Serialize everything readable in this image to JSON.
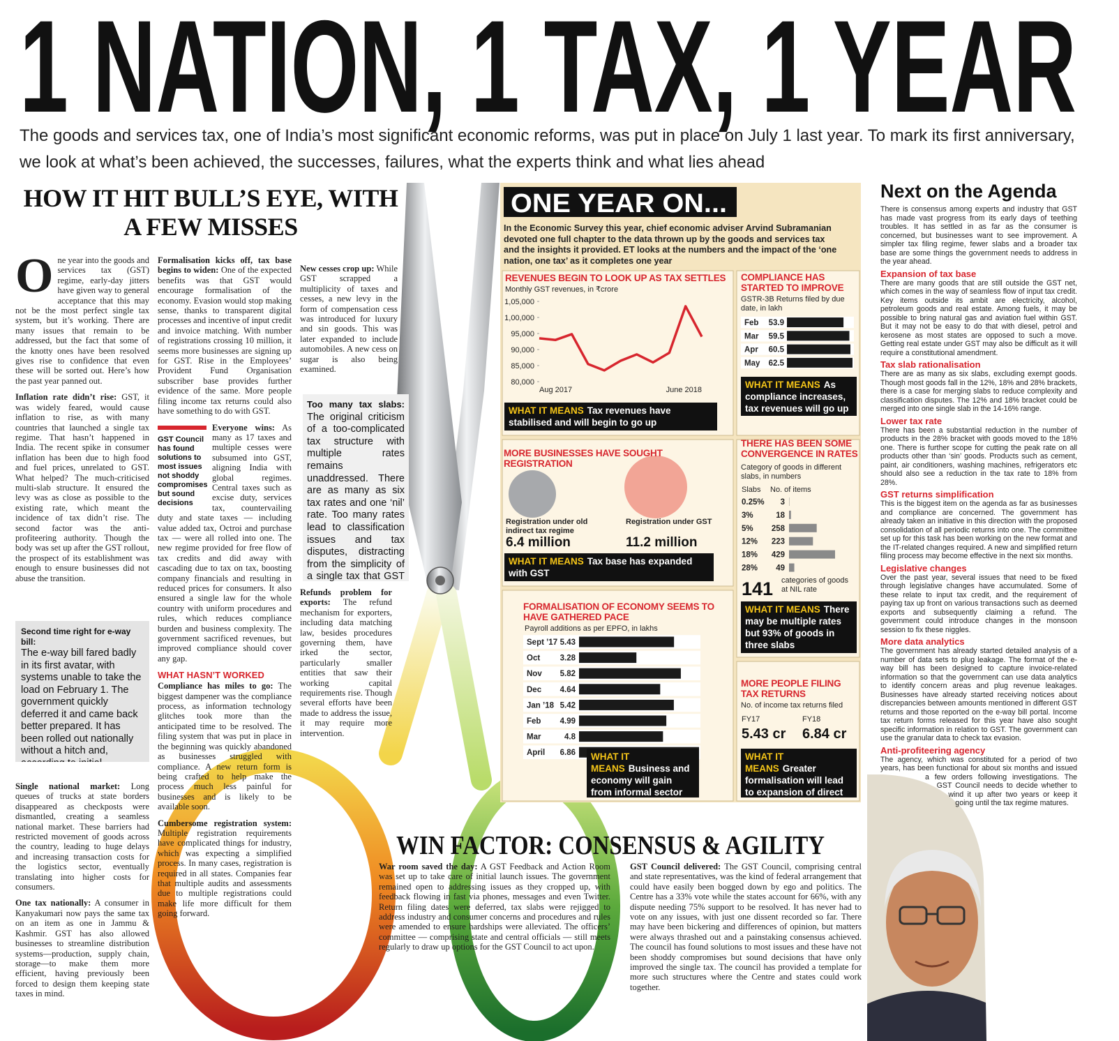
{
  "headline": "1 NATION, 1 TAX, 1 YEAR",
  "deck": "The goods and services tax, one of India’s most significant economic reforms, was put in place on July 1 last year. To mark its first anniversary, we look at what’s been achieved, the successes, failures, what the experts think and what lies ahead",
  "left_article": {
    "title": "HOW IT HIT BULL’S EYE, WITH A FEW MISSES",
    "dropcap": "O",
    "intro": "ne year into the goods and services tax (GST) regime, early-day jitters have given way to general acceptance that this may not be the most perfect single tax system, but it’s working. There are many issues that remain to be addressed, but the fact that some of the knotty ones have been resolved gives rise to confidence that even these will be sorted out. Here’s how the past year panned out.",
    "pullquote": "GST Council has found solutions to most issues not shoddy compromises but sound decisions",
    "subhead": "WHAT HASN’T WORKED",
    "sections": [
      {
        "lead": "Inflation rate didn’t rise:",
        "text": "GST, it was widely feared, would cause inflation to rise, as with many countries that launched a single tax regime. That hasn’t happened in India. The recent spike in consumer inflation has been due to high food and fuel prices, unrelated to GST. What helped? The much-criticised multi-slab structure. It ensured the levy was as close as possible to the existing rate, which meant the incidence of tax didn’t rise. The second factor was the anti-profiteering authority. Though the body was set up after the GST rollout, the prospect of its establishment was enough to ensure businesses did not abuse the transition."
      },
      {
        "lead": "Second time right for e-way bill:",
        "text": "The e-way bill fared badly in its first avatar, with systems unable to take the load on February 1. The government quickly deferred it and came back better prepared. It has been rolled out nationally without a hitch and, according to initial assessments, has helped curb evasion."
      },
      {
        "lead": "Single national market:",
        "text": "Long queues of trucks at state borders disappeared as checkposts were dismantled, creating a seamless national market. These barriers had restricted movement of goods across the country, leading to huge delays and increasing transaction costs for the logistics sector, eventually translating into higher costs for consumers."
      },
      {
        "lead": "One tax nationally:",
        "text": "A consumer in Kanyakumari now pays the same tax on an item as one in Jammu & Kashmir. GST has also allowed businesses to streamline distribution systems—production, supply chain, storage—to make them more efficient, having previously been forced to design them keeping state taxes in mind."
      },
      {
        "lead": "Formalisation kicks off, tax base begins to widen:",
        "text": "One of the expected benefits was that GST would encourage formalisation of the economy. Evasion would stop making sense, thanks to transparent digital processes and incentive of input credit and invoice matching. With number of registrations crossing 10 million, it seems more businesses are signing up for GST. Rise in the Employees’ Provident Fund Organisation subscriber base provides further evidence of the same. More people filing income tax returns could also have something to do with GST."
      },
      {
        "lead": "Everyone wins:",
        "text": "As many as 17 taxes and multiple cesses were subsumed into GST, aligning India with global regimes. Central taxes such as excise duty, services tax, countervailing duty and state taxes — including value added tax, Octroi and purchase tax — were all rolled into one. The new regime provided for free flow of tax credits and did away with cascading due to tax on tax, boosting company financials and resulting in reduced prices for consumers. It also ensured a single law for the whole country with uniform procedures and rules, which reduces compliance burden and business complexity. The government sacrificed revenues, but improved compliance should cover any gap."
      },
      {
        "lead": "Compliance has miles to go:",
        "text": "The biggest dampener was the compliance process, as information technology glitches took more than the anticipated time to be resolved. The filing system that was put in place in the beginning was quickly abandoned as businesses struggled with compliance. A new return form is being crafted to help make the process much less painful for businesses and is likely to be available soon."
      },
      {
        "lead": "Cumbersome registration system:",
        "text": "Multiple registration requirements have complicated things for industry, which was expecting a simplified process. In many cases, registration is required in all states. Companies fear that multiple audits and assessments due to multiple registrations could make life more difficult for them going forward."
      },
      {
        "lead": "New cesses crop up:",
        "text": "While GST scrapped a multiplicity of taxes and cesses, a new levy in the form of compensation cess was introduced for luxury and sin goods. This was later expanded to include automobiles. A new cess on sugar is also being examined."
      },
      {
        "lead": "Too many tax slabs:",
        "text": "The original criticism of a too-complicated tax structure with multiple rates remains unaddressed. There are as many as six tax rates and one ‘nil’ rate. Too many rates lead to classification issues and tax disputes, distracting from the simplicity of a single tax that GST should have been."
      },
      {
        "lead": "Refunds problem for exports:",
        "text": "The refund mechanism for exporters, including data matching law, besides procedures governing them, have irked the sector, particularly smaller entities that saw their working capital requirements rise. Though several efforts have been made to address the issue, it may require more intervention."
      }
    ]
  },
  "infographic": {
    "title": "ONE YEAR ON...",
    "intro": "In the Economic Survey this year, chief economic adviser Arvind Subramanian devoted one full chapter to the data thrown up by the goods and services tax and the insights it provided. ET looks at the numbers and the impact of the ‘one nation, one tax’ as it completes one year"
  },
  "chart_data": [
    {
      "type": "line",
      "title": "REVENUES BEGIN TO LOOK UP AS TAX SETTLES",
      "subtitle": "Monthly GST revenues, in ₹crore",
      "categories": [
        "Aug 2017",
        null,
        null,
        null,
        null,
        null,
        null,
        null,
        null,
        null,
        "June 2018"
      ],
      "values": [
        93500,
        93000,
        94800,
        85500,
        83500,
        86500,
        88500,
        86000,
        89000,
        103500,
        94000
      ],
      "color": "#d7262e",
      "ylim": [
        80000,
        105000
      ],
      "grid": false,
      "yticks": [
        {
          "value": 80000,
          "label": "80,000"
        },
        {
          "value": 85000,
          "label": "85,000"
        },
        {
          "value": 90000,
          "label": "90,000"
        },
        {
          "value": 95000,
          "label": "95,000"
        },
        {
          "value": 100000,
          "label": "1,00,000"
        },
        {
          "value": 105000,
          "label": "1,05,000"
        }
      ],
      "note": {
        "label": "WHAT IT MEANS",
        "text": "Tax revenues have stabilised and will begin to go up"
      }
    },
    {
      "type": "bar",
      "title": "COMPLIANCE HAS STARTED TO IMPROVE",
      "subtitle": "GSTR-3B Returns filed by due date, in lakh",
      "categories": [
        "Feb",
        "Mar",
        "Apr",
        "May"
      ],
      "values": [
        53.9,
        59.5,
        60.5,
        62.5
      ],
      "color": "#1a1a1a",
      "note": {
        "label": "WHAT IT MEANS",
        "text": "As compliance increases, tax revenues will go up"
      }
    },
    {
      "type": "bubble",
      "title": "MORE BUSINESSES HAVE SOUGHT REGISTRATION",
      "categories": [
        "Registration under old indirect tax regime",
        "Registration under GST"
      ],
      "values": [
        6.4,
        11.2
      ],
      "value_labels": [
        "6.4 million",
        "11.2 million"
      ],
      "colors": [
        "#a7a9ac",
        "#f2a596"
      ],
      "note": {
        "label": "WHAT IT MEANS",
        "text": "Tax base has expanded with GST"
      }
    },
    {
      "type": "bar",
      "title": "THERE HAS BEEN SOME CONVERGENCE IN RATES",
      "subtitle": "Category of goods in different slabs, in numbers",
      "column_headers": [
        "Slabs",
        "No. of items"
      ],
      "categories": [
        "0.25%",
        "3%",
        "5%",
        "12%",
        "18%",
        "28%"
      ],
      "values": [
        3,
        18,
        258,
        223,
        429,
        49
      ],
      "color": "#8a8a8a",
      "nil": {
        "value": 141,
        "label": "categories of goods at NIL rate"
      },
      "note": {
        "label": "WHAT IT MEANS",
        "text": "There may be multiple rates but 93% of goods in three slabs"
      }
    },
    {
      "type": "bar",
      "title": "FORMALISATION OF ECONOMY SEEMS TO HAVE GATHERED PACE",
      "subtitle": "Payroll additions as per EPFO, in lakhs",
      "categories": [
        "Sept ’17",
        "Oct",
        "Nov",
        "Dec",
        "Jan ’18",
        "Feb",
        "Mar",
        "April"
      ],
      "values": [
        5.43,
        3.28,
        5.82,
        4.64,
        5.42,
        4.99,
        4.8,
        6.86
      ],
      "color": "#1a1a1a",
      "note": {
        "label": "WHAT IT MEANS",
        "text": "Business and economy will gain from informal sector becoming formal"
      }
    },
    {
      "type": "stat",
      "title": "MORE PEOPLE FILING TAX RETURNS",
      "subtitle": "No. of income tax returns filed",
      "categories": [
        "FY17",
        "FY18"
      ],
      "values": [
        5.43,
        6.84
      ],
      "value_labels": [
        "5.43 cr",
        "6.84 cr"
      ],
      "note": {
        "label": "WHAT IT MEANS",
        "text": "Greater formalisation will lead to expansion of direct tax base as well"
      }
    }
  ],
  "agenda": {
    "title": "Next on the Agenda",
    "intro": "There is consensus among experts and industry that GST has made vast progress from its early days of teething troubles. It has settled in as far as the consumer is concerned, but businesses want to see improvement. A simpler tax filing regime, fewer slabs and a broader tax base are some things the government needs to address in the year ahead.",
    "sections": [
      {
        "heading": "Expansion of tax base",
        "text": "There are many goods that are still outside the GST net, which comes in the way of seamless flow of input tax credit. Key items outside its ambit are electricity, alcohol, petroleum goods and real estate. Among fuels, it may be possible to bring natural gas and aviation fuel within GST. But it may not be easy to do that with diesel, petrol and kerosene as most states are opposed to such a move. Getting real estate under GST may also be difficult as it will require a constitutional amendment."
      },
      {
        "heading": "Tax slab rationalisation",
        "text": "There are as many as six slabs, excluding exempt goods. Though most goods fall in the 12%, 18% and 28% brackets, there is a case for merging slabs to reduce complexity and classification disputes. The 12% and 18% bracket could be merged into one single slab in the 14-16% range."
      },
      {
        "heading": "Lower tax rate",
        "text": "There has been a substantial reduction in the number of products in the 28% bracket with goods moved to the 18% one. There is further scope for cutting the peak rate on all products other than ‘sin’ goods. Products such as cement, paint, air conditioners, washing machines, refrigerators etc should also see a reduction in the tax rate to 18% from 28%."
      },
      {
        "heading": "GST returns simplification",
        "text": "This is the biggest item on the agenda as far as businesses and compliance are concerned. The government has already taken an initiative in this direction with the proposed consolidation of all periodic returns into one. The committee set up for this task has been working on the new format and the IT-related changes required. A new and simplified return filing process may become effective in the next six months."
      },
      {
        "heading": "Legislative changes",
        "text": "Over the past year, several issues that need to be fixed through legislative changes have accumulated. Some of these relate to input tax credit, and the requirement of paying tax up front on various transactions such as deemed exports and subsequently claiming a refund. The government could introduce changes in the monsoon session to fix these niggles."
      },
      {
        "heading": "More data analytics",
        "text": "The government has already started detailed analysis of a number of data sets to plug leakage. The format of the e-way bill has been designed to capture invoice-related information so that the government can use data analytics to identify concern areas and plug revenue leakages. Businesses have already started receiving notices about discrepancies between amounts mentioned in different GST returns and those reported on the e-way bill portal. Income tax return forms released for this year have also sought specific information in relation to GST. The government can use the granular data to check tax evasion."
      },
      {
        "heading": "Anti-profiteering agency",
        "text": "The agency, which was constituted for a period of two years, has been functional for about six months and issued a few orders following investigations. The GST Council needs to decide whether to wind it up after two years or keep it going until the tax regime matures."
      }
    ]
  },
  "win_factor": {
    "title": "WIN FACTOR: CONSENSUS & AGILITY",
    "sections": [
      {
        "lead": "War room saved the day:",
        "text": "A GST Feedback and Action Room was set up to take care of initial launch issues. The government remained open to addressing issues as they cropped up, with feedback flowing in fast via phones, messages and even Twitter. Return filing dates were deferred, tax slabs were rejigged to address industry and consumer concerns and procedures and rules were amended to ensure hardships were alleviated. The officers’ committee — comprising state and central officials — still meets regularly to draw up options for the GST Council to act upon."
      },
      {
        "lead": "GST Council delivered:",
        "text": "The GST Council, comprising central and state representatives, was the kind of federal arrangement that could have easily been bogged down by ego and politics. The Centre has a 33% vote while the states account for 66%, with any dispute needing 75% support to be resolved. It has never had to vote on any issues, with just one dissent recorded so far. There may have been bickering and differences of opinion, but matters were always thrashed out and a painstaking consensus achieved. The council has found solutions to most issues and these have not been shoddy compromises but sound decisions that have only improved the single tax. The council has provided a template for more such structures where the Centre and states could work together."
      }
    ]
  }
}
